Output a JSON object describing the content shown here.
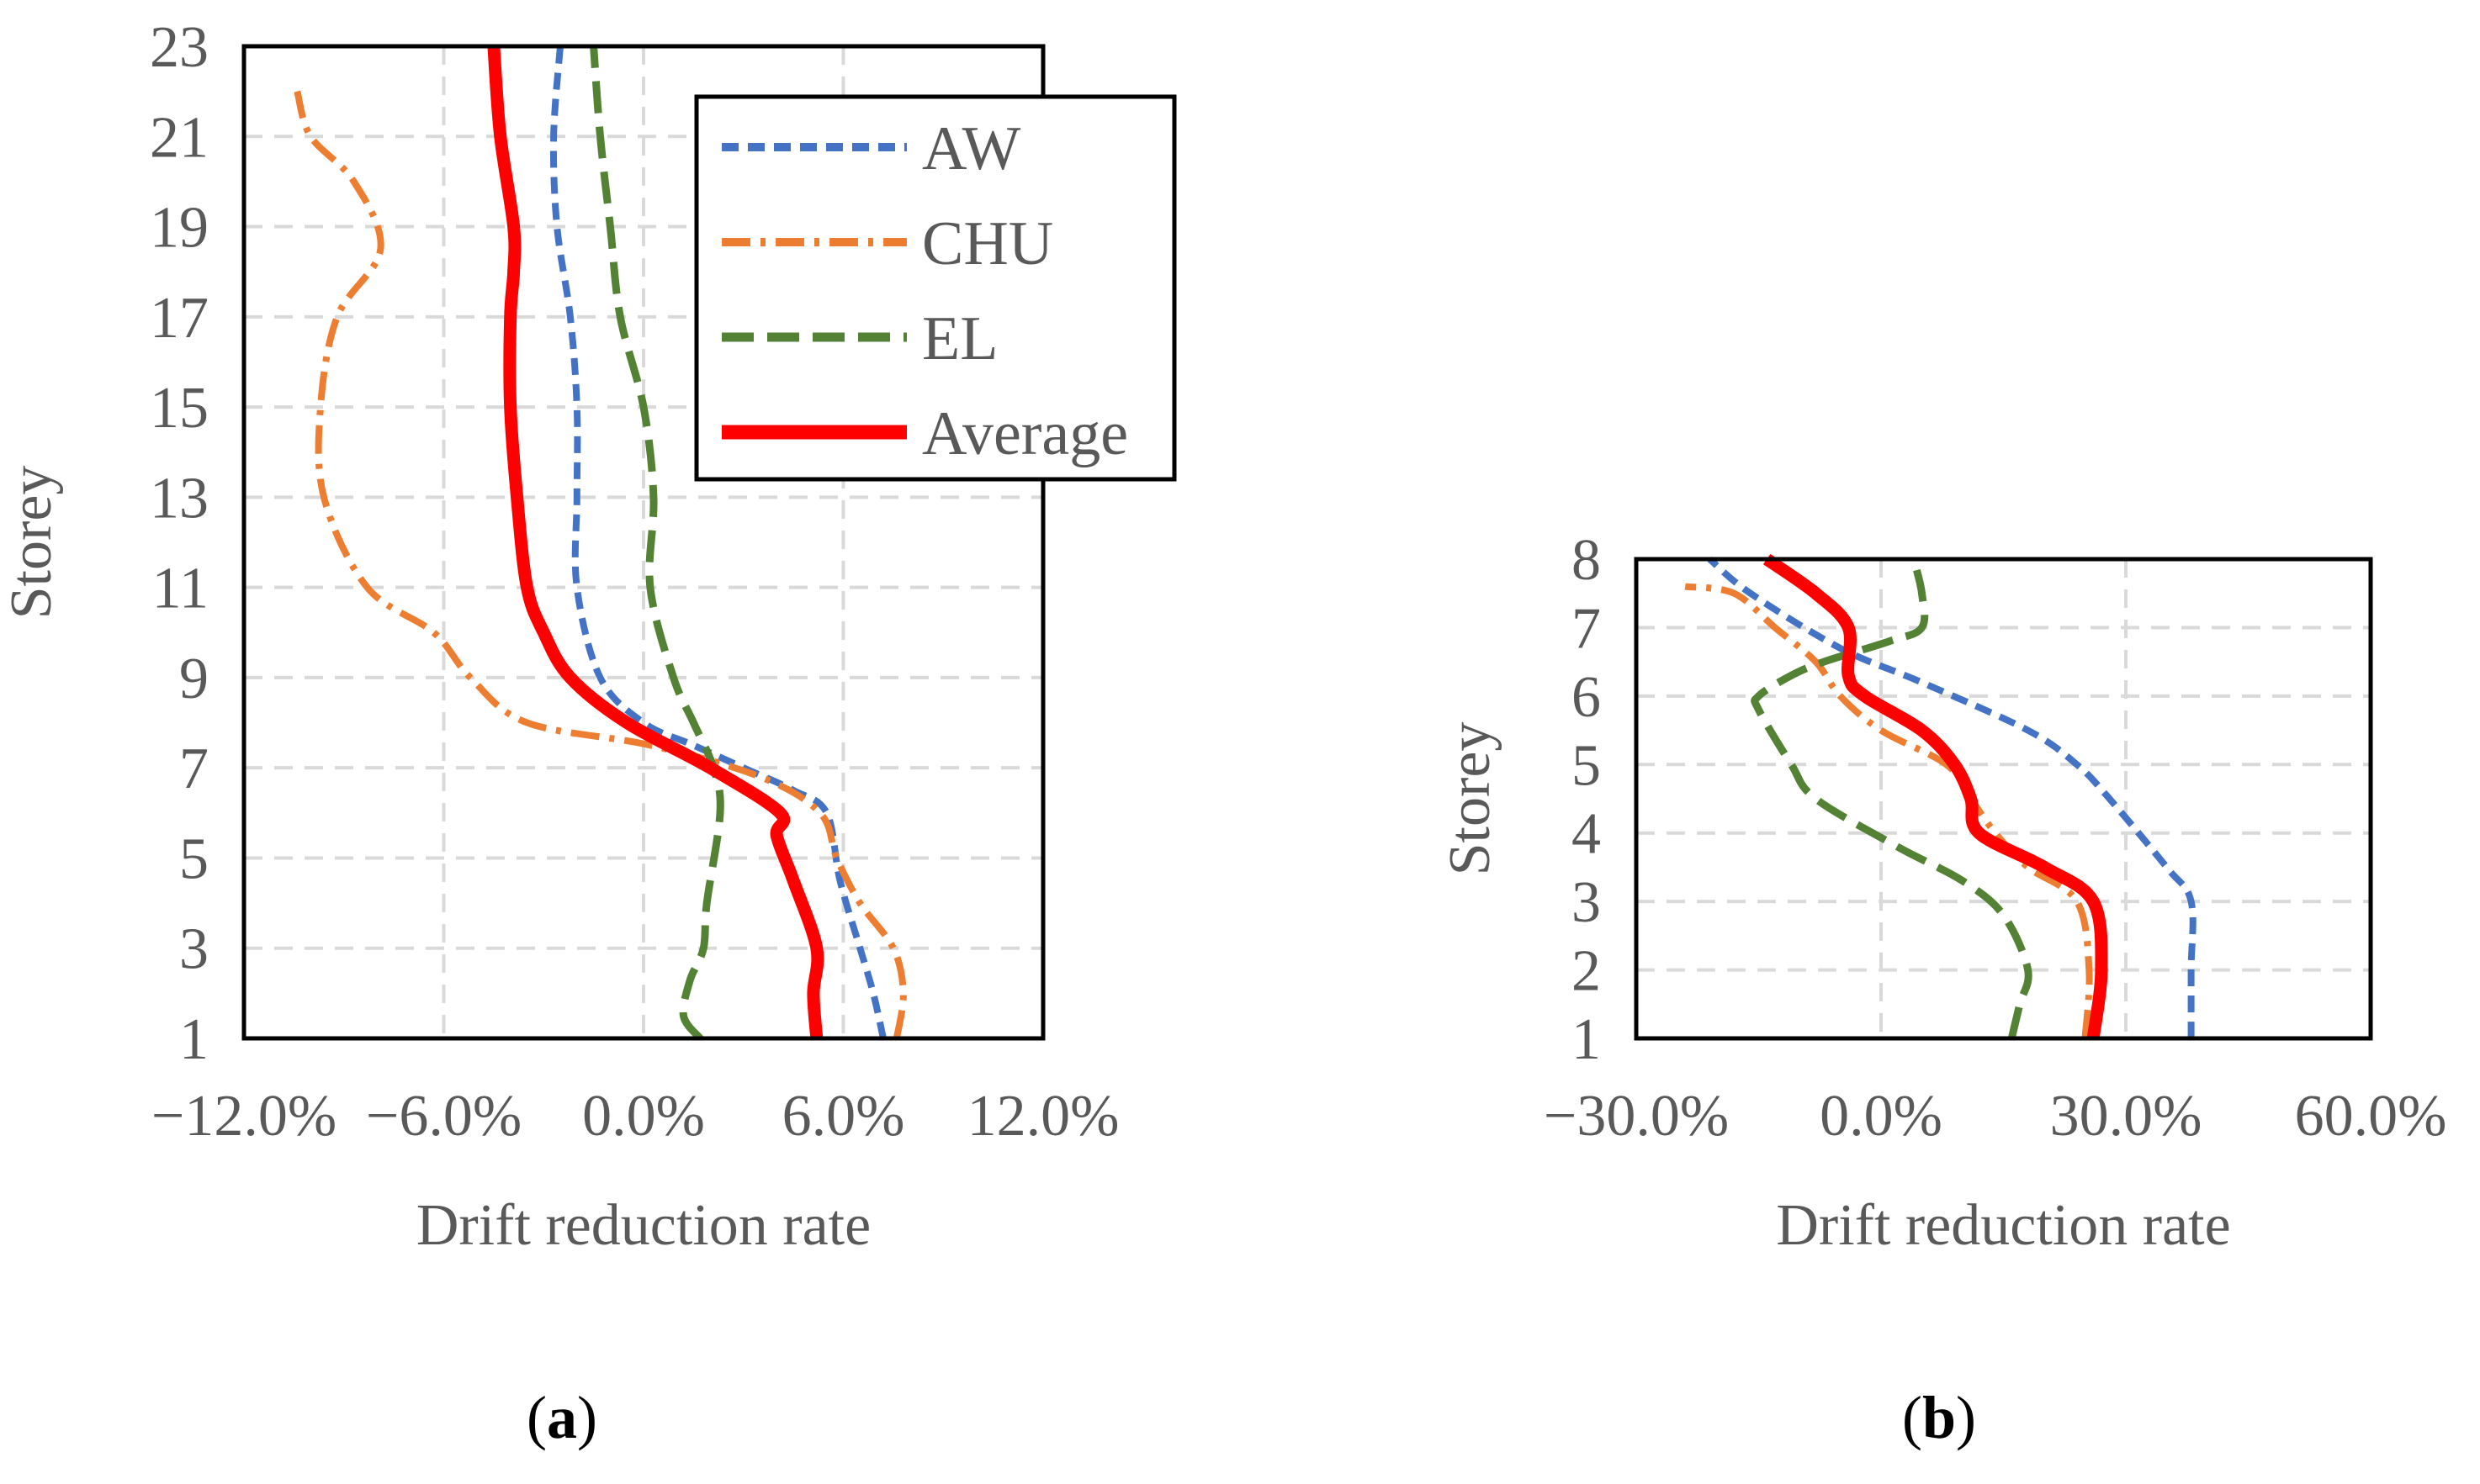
{
  "chart_data": [
    {
      "type": "line",
      "panel": "a",
      "caption_label": "a",
      "xlabel": "Drift reduction rate",
      "ylabel": "Storey",
      "xlim": [
        -12.0,
        12.0
      ],
      "ylim": [
        1,
        23
      ],
      "x_ticks": [
        -12,
        -6,
        0,
        6,
        12
      ],
      "x_tick_labels": [
        "−12.0%",
        "−6.0%",
        "0.0%",
        "6.0%",
        "12.0%"
      ],
      "y_ticks": [
        1,
        3,
        5,
        7,
        9,
        11,
        13,
        15,
        17,
        19,
        21,
        23
      ],
      "y_tick_labels": [
        "1",
        "3",
        "5",
        "7",
        "9",
        "11",
        "13",
        "15",
        "17",
        "19",
        "21",
        "23"
      ],
      "legend": {
        "position": "top-right",
        "entries": [
          "AW",
          "CHU",
          "EL",
          "Average"
        ]
      },
      "series": [
        {
          "name": "AW",
          "color": "#4472C4",
          "style": "dash",
          "points": [
            [
              7.2,
              1
            ],
            [
              6.9,
              2
            ],
            [
              6.5,
              3
            ],
            [
              5.9,
              4.5
            ],
            [
              5.5,
              6
            ],
            [
              4.5,
              6.5
            ],
            [
              3.0,
              7
            ],
            [
              1.5,
              7.5
            ],
            [
              0.0,
              8
            ],
            [
              -1.3,
              9
            ],
            [
              -2.0,
              11
            ],
            [
              -2.0,
              13
            ],
            [
              -2.0,
              15
            ],
            [
              -2.2,
              17
            ],
            [
              -2.6,
              19
            ],
            [
              -2.7,
              21
            ],
            [
              -2.5,
              23
            ]
          ]
        },
        {
          "name": "CHU",
          "color": "#ED7D31",
          "style": "dashdot",
          "points": [
            [
              7.6,
              1
            ],
            [
              7.8,
              2
            ],
            [
              7.5,
              3
            ],
            [
              6.5,
              4
            ],
            [
              5.8,
              5
            ],
            [
              5.3,
              6
            ],
            [
              3.5,
              6.8
            ],
            [
              0.2,
              7.5
            ],
            [
              -3.5,
              8
            ],
            [
              -5.2,
              9
            ],
            [
              -6.3,
              10
            ],
            [
              -8.3,
              11
            ],
            [
              -9.6,
              13
            ],
            [
              -9.7,
              15
            ],
            [
              -9.2,
              17
            ],
            [
              -7.9,
              18.5
            ],
            [
              -8.7,
              20
            ],
            [
              -10.0,
              21
            ],
            [
              -10.4,
              22
            ]
          ]
        },
        {
          "name": "EL",
          "color": "#548235",
          "style": "longdash",
          "points": [
            [
              1.7,
              1
            ],
            [
              1.2,
              1.5
            ],
            [
              1.4,
              2.3
            ],
            [
              1.8,
              3
            ],
            [
              1.9,
              4
            ],
            [
              2.3,
              6
            ],
            [
              2.1,
              7
            ],
            [
              1.5,
              8
            ],
            [
              0.9,
              9
            ],
            [
              0.2,
              11
            ],
            [
              0.3,
              13
            ],
            [
              0.0,
              15
            ],
            [
              -0.7,
              17
            ],
            [
              -1.0,
              19
            ],
            [
              -1.3,
              21
            ],
            [
              -1.5,
              23
            ]
          ]
        },
        {
          "name": "Average",
          "color": "#FF0000",
          "style": "solid",
          "points": [
            [
              5.2,
              1
            ],
            [
              5.1,
              2
            ],
            [
              5.2,
              3
            ],
            [
              4.5,
              4.5
            ],
            [
              4.0,
              5.5
            ],
            [
              4.1,
              6
            ],
            [
              2.0,
              7
            ],
            [
              -0.5,
              8
            ],
            [
              -2.2,
              9
            ],
            [
              -3.0,
              10
            ],
            [
              -3.5,
              11
            ],
            [
              -3.8,
              13
            ],
            [
              -4.0,
              15
            ],
            [
              -4.0,
              17
            ],
            [
              -3.9,
              18
            ],
            [
              -3.9,
              19
            ],
            [
              -4.3,
              21
            ],
            [
              -4.5,
              23
            ]
          ]
        }
      ]
    },
    {
      "type": "line",
      "panel": "b",
      "caption_label": "b",
      "xlabel": "Drift reduction rate",
      "ylabel": "Storey",
      "xlim": [
        -30.0,
        60.0
      ],
      "ylim": [
        1,
        8
      ],
      "x_ticks": [
        -30,
        0,
        30,
        60
      ],
      "x_tick_labels": [
        "−30.0%",
        "0.0%",
        "30.0%",
        "60.0%"
      ],
      "y_ticks": [
        1,
        2,
        3,
        4,
        5,
        6,
        7,
        8
      ],
      "y_tick_labels": [
        "1",
        "2",
        "3",
        "4",
        "5",
        "6",
        "7",
        "8"
      ],
      "series": [
        {
          "name": "AW",
          "color": "#4472C4",
          "style": "dash",
          "points": [
            [
              38,
              1
            ],
            [
              38,
              2
            ],
            [
              38,
              3
            ],
            [
              35,
              3.5
            ],
            [
              28,
              4.5
            ],
            [
              24,
              5
            ],
            [
              18,
              5.5
            ],
            [
              5,
              6.2
            ],
            [
              -5,
              6.7
            ],
            [
              -16,
              7.5
            ],
            [
              -21,
              8
            ]
          ]
        },
        {
          "name": "CHU",
          "color": "#ED7D31",
          "style": "dashdot",
          "points": [
            [
              25,
              1
            ],
            [
              25.5,
              2
            ],
            [
              24,
              3
            ],
            [
              18,
              3.5
            ],
            [
              14,
              4
            ],
            [
              11,
              4.5
            ],
            [
              8,
              5
            ],
            [
              0,
              5.5
            ],
            [
              -5,
              6
            ],
            [
              -8,
              6.5
            ],
            [
              -13,
              7
            ],
            [
              -18,
              7.5
            ],
            [
              -24,
              7.6
            ]
          ]
        },
        {
          "name": "EL",
          "color": "#548235",
          "style": "longdash",
          "points": [
            [
              16,
              1
            ],
            [
              17,
              1.5
            ],
            [
              18,
              2
            ],
            [
              15,
              2.8
            ],
            [
              10,
              3.3
            ],
            [
              2,
              3.8
            ],
            [
              -8,
              4.5
            ],
            [
              -11,
              5
            ],
            [
              -15,
              5.8
            ],
            [
              -15,
              6
            ],
            [
              -11,
              6.3
            ],
            [
              -7,
              6.5
            ],
            [
              1,
              6.8
            ],
            [
              5,
              7
            ],
            [
              5,
              7.5
            ],
            [
              4,
              8
            ]
          ]
        },
        {
          "name": "Average",
          "color": "#FF0000",
          "style": "solid",
          "points": [
            [
              26,
              1
            ],
            [
              27,
              2
            ],
            [
              26,
              3
            ],
            [
              20,
              3.5
            ],
            [
              12,
              4
            ],
            [
              11,
              4.5
            ],
            [
              9,
              5
            ],
            [
              5,
              5.5
            ],
            [
              -2,
              6
            ],
            [
              -4,
              6.3
            ],
            [
              -4,
              7
            ],
            [
              -8,
              7.5
            ],
            [
              -14,
              8
            ]
          ]
        }
      ]
    }
  ]
}
